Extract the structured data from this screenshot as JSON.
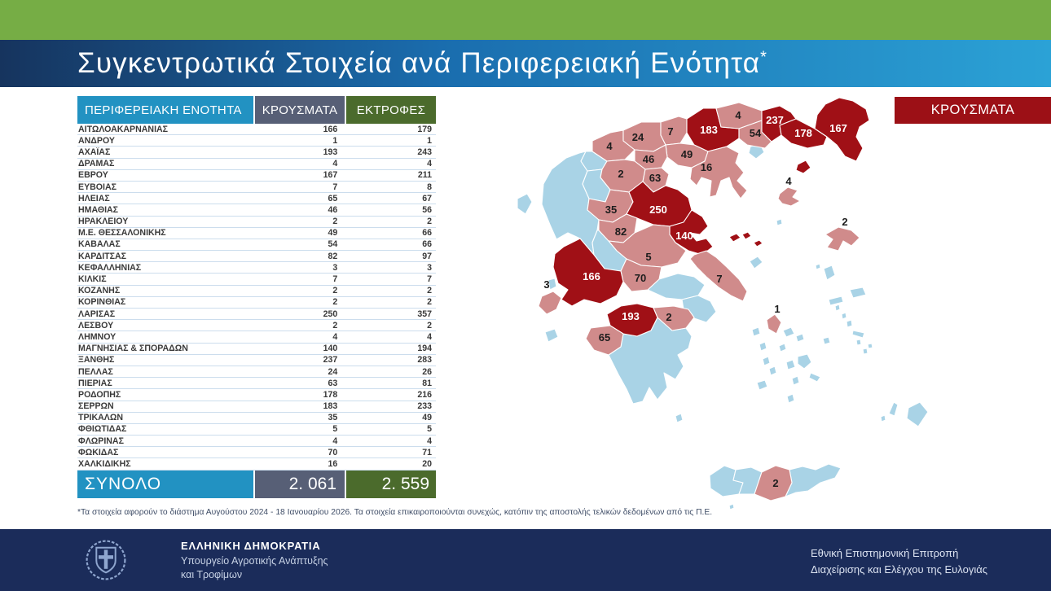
{
  "page": {
    "title": "Συγκεντρωτικά Στοιχεία ανά Περιφερειακή Ενότητα",
    "title_superscript": "*"
  },
  "table": {
    "headers": [
      "ΠΕΡΙΦΕΡΕΙΑΚΗ ΕΝΟΤΗΤΑ",
      "ΚΡΟΥΣΜΑΤΑ",
      "ΕΚΤΡΟΦΕΣ"
    ],
    "total": {
      "label": "ΣΥΝΟΛΟ",
      "cases": "2. 061",
      "farms": "2. 559"
    }
  },
  "footnote": "*Τα στοιχεία αφορούν το διάστημα Αυγούστου 2024 - 18 Ιανουαρίου 2026. Τα στοιχεία επικαιροποιούνται συνεχώς, κατόπιν της αποστολής τελικών δεδομένων από τις Π.Ε.",
  "map": {
    "legend_label": "ΚΡΟΥΣΜΑΤΑ",
    "palette": {
      "high": "#A01016",
      "mid": "#D08B8B",
      "none": "#A9D3E6",
      "stroke": "#FFFFFF"
    },
    "regions": [
      {
        "id": "aitoloakarnania",
        "name": "ΑΙΤΩΛΟΑΚΑΡΝΑΝΙΑΣ",
        "value": 166,
        "level": "high"
      },
      {
        "id": "andros",
        "name": "ΑΝΔΡΟΥ",
        "value": 1,
        "level": "mid"
      },
      {
        "id": "achaia",
        "name": "ΑΧΑΪΑΣ",
        "value": 193,
        "level": "high"
      },
      {
        "id": "drama",
        "name": "ΔΡΑΜΑΣ",
        "value": 4,
        "level": "mid"
      },
      {
        "id": "evros",
        "name": "ΕΒΡΟΥ",
        "value": 167,
        "level": "high"
      },
      {
        "id": "evia",
        "name": "ΕΥΒΟΙΑΣ",
        "value": 7,
        "level": "mid"
      },
      {
        "id": "ileia",
        "name": "ΗΛΕΙΑΣ",
        "value": 65,
        "level": "mid"
      },
      {
        "id": "imathia",
        "name": "ΗΜΑΘΙΑΣ",
        "value": 46,
        "level": "mid"
      },
      {
        "id": "irakleio",
        "name": "ΗΡΑΚΛΕΙΟΥ",
        "value": 2,
        "level": "mid"
      },
      {
        "id": "thessaloniki",
        "name": "Μ.Ε. ΘΕΣΣΑΛΟΝΙΚΗΣ",
        "value": 49,
        "level": "mid"
      },
      {
        "id": "kavala",
        "name": "ΚΑΒΑΛΑΣ",
        "value": 54,
        "level": "mid"
      },
      {
        "id": "karditsa",
        "name": "ΚΑΡΔΙΤΣΑΣ",
        "value": 82,
        "level": "mid"
      },
      {
        "id": "kefalonia",
        "name": "ΚΕΦΑΛΛΗΝΙΑΣ",
        "value": 3,
        "level": "mid"
      },
      {
        "id": "kilkis",
        "name": "ΚΙΛΚΙΣ",
        "value": 7,
        "level": "mid"
      },
      {
        "id": "kozani",
        "name": "ΚΟΖΑΝΗΣ",
        "value": 2,
        "level": "mid"
      },
      {
        "id": "korinthia",
        "name": "ΚΟΡΙΝΘΙΑΣ",
        "value": 2,
        "level": "mid"
      },
      {
        "id": "larisa",
        "name": "ΛΑΡΙΣΑΣ",
        "value": 250,
        "level": "high"
      },
      {
        "id": "lesbos",
        "name": "ΛΕΣΒΟΥ",
        "value": 2,
        "level": "mid"
      },
      {
        "id": "lemnos",
        "name": "ΛΗΜΝΟΥ",
        "value": 4,
        "level": "mid"
      },
      {
        "id": "magnisia",
        "name": "ΜΑΓΝΗΣΙΑΣ & ΣΠΟΡΑΔΩΝ",
        "value": 140,
        "level": "high"
      },
      {
        "id": "xanthi",
        "name": "ΞΑΝΘΗΣ",
        "value": 237,
        "level": "high"
      },
      {
        "id": "pella",
        "name": "ΠΕΛΛΑΣ",
        "value": 24,
        "level": "mid"
      },
      {
        "id": "pieria",
        "name": "ΠΙΕΡΙΑΣ",
        "value": 63,
        "level": "mid"
      },
      {
        "id": "rodopi",
        "name": "ΡΟΔΟΠΗΣ",
        "value": 178,
        "level": "high"
      },
      {
        "id": "serres",
        "name": "ΣΕΡΡΩΝ",
        "value": 183,
        "level": "high"
      },
      {
        "id": "trikala",
        "name": "ΤΡΙΚΑΛΩΝ",
        "value": 35,
        "level": "mid"
      },
      {
        "id": "fthiotida",
        "name": "ΦΘΙΩΤΙΔΑΣ",
        "value": 5,
        "level": "mid"
      },
      {
        "id": "florina",
        "name": "ΦΛΩΡΙΝΑΣ",
        "value": 4,
        "level": "mid"
      },
      {
        "id": "fokida",
        "name": "ΦΩΚΙΔΑΣ",
        "value": 70,
        "level": "mid"
      },
      {
        "id": "chalkidiki",
        "name": "ΧΑΛΚΙΔΙΚΗΣ",
        "value": 16,
        "level": "mid"
      }
    ]
  },
  "footer": {
    "gov_title": "ΕΛΛΗΝΙΚΗ ΔΗΜΟΚΡΑΤΙΑ",
    "ministry_line1": "Υπουργείο Αγροτικής Ανάπτυξης",
    "ministry_line2": "και Τροφίμων",
    "committee_line1": "Εθνική Επιστημονική Επιτροπή",
    "committee_line2": "Διαχείρισης και Ελέγχου της Ευλογιάς"
  },
  "colors": {
    "top_strip_green": "#76AD45",
    "band_gradient_left": "#16345E",
    "band_gradient_right": "#2BA2D6",
    "col_name_blue": "#2292C2",
    "col_cases_slate": "#575F76",
    "col_farms_olive": "#4B6B2C",
    "legend_red": "#9C1016",
    "footer_navy": "#1B2C5A"
  },
  "chart_data": {
    "type": "table",
    "title": "Συγκεντρωτικά Στοιχεία ανά Περιφερειακή Ενότητα*",
    "columns": [
      "ΠΕΡΙΦΕΡΕΙΑΚΗ ΕΝΟΤΗΤΑ",
      "ΚΡΟΥΣΜΑΤΑ",
      "ΕΚΤΡΟΦΕΣ"
    ],
    "rows": [
      [
        "ΑΙΤΩΛΟΑΚΑΡΝΑΝΙΑΣ",
        166,
        179
      ],
      [
        "ΑΝΔΡΟΥ",
        1,
        1
      ],
      [
        "ΑΧΑΪΑΣ",
        193,
        243
      ],
      [
        "ΔΡΑΜΑΣ",
        4,
        4
      ],
      [
        "ΕΒΡΟΥ",
        167,
        211
      ],
      [
        "ΕΥΒΟΙΑΣ",
        7,
        8
      ],
      [
        "ΗΛΕΙΑΣ",
        65,
        67
      ],
      [
        "ΗΜΑΘΙΑΣ",
        46,
        56
      ],
      [
        "ΗΡΑΚΛΕΙΟΥ",
        2,
        2
      ],
      [
        "Μ.Ε. ΘΕΣΣΑΛΟΝΙΚΗΣ",
        49,
        66
      ],
      [
        "ΚΑΒΑΛΑΣ",
        54,
        66
      ],
      [
        "ΚΑΡΔΙΤΣΑΣ",
        82,
        97
      ],
      [
        "ΚΕΦΑΛΛΗΝΙΑΣ",
        3,
        3
      ],
      [
        "ΚΙΛΚΙΣ",
        7,
        7
      ],
      [
        "ΚΟΖΑΝΗΣ",
        2,
        2
      ],
      [
        "ΚΟΡΙΝΘΙΑΣ",
        2,
        2
      ],
      [
        "ΛΑΡΙΣΑΣ",
        250,
        357
      ],
      [
        "ΛΕΣΒΟΥ",
        2,
        2
      ],
      [
        "ΛΗΜΝΟΥ",
        4,
        4
      ],
      [
        "ΜΑΓΝΗΣΙΑΣ & ΣΠΟΡΑΔΩΝ",
        140,
        194
      ],
      [
        "ΞΑΝΘΗΣ",
        237,
        283
      ],
      [
        "ΠΕΛΛΑΣ",
        24,
        26
      ],
      [
        "ΠΙΕΡΙΑΣ",
        63,
        81
      ],
      [
        "ΡΟΔΟΠΗΣ",
        178,
        216
      ],
      [
        "ΣΕΡΡΩΝ",
        183,
        233
      ],
      [
        "ΤΡΙΚΑΛΩΝ",
        35,
        49
      ],
      [
        "ΦΘΙΩΤΙΔΑΣ",
        5,
        5
      ],
      [
        "ΦΛΩΡΙΝΑΣ",
        4,
        4
      ],
      [
        "ΦΩΚΙΔΑΣ",
        70,
        71
      ],
      [
        "ΧΑΛΚΙΔΙΚΗΣ",
        16,
        20
      ]
    ],
    "total_row": [
      "ΣΥΝΟΛΟ",
      "2. 061",
      "2. 559"
    ],
    "choropleth_metric": "ΚΡΟΥΣΜΑΤΑ"
  }
}
